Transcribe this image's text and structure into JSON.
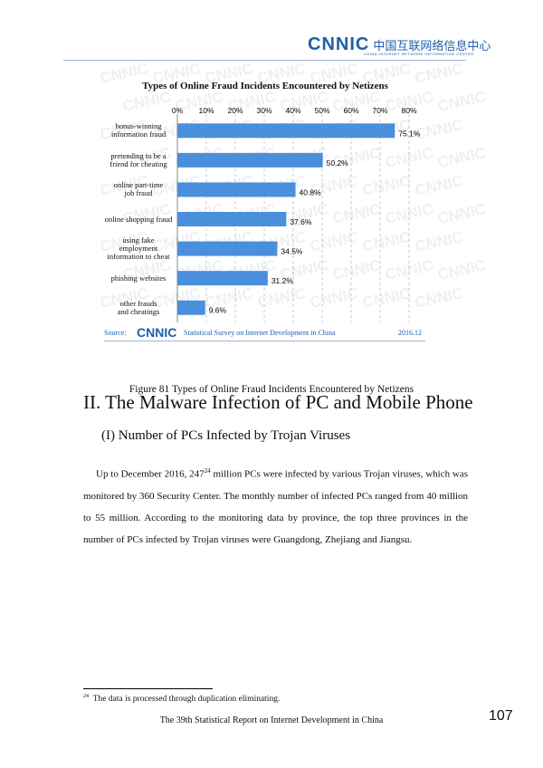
{
  "header": {
    "logo_text": "CNNIC",
    "logo_cn": "中国互联网络信息中心",
    "logo_sub": "CHINA INTERNET NETWORK INFORMATION CENTER"
  },
  "chart_data": {
    "type": "bar",
    "orientation": "horizontal",
    "title": "Types of Online Fraud Incidents Encountered by Netizens",
    "categories": [
      [
        "bonus-winning",
        "information fraud"
      ],
      [
        "pretending to be a",
        "friend for cheating"
      ],
      [
        "online part-time",
        "job fraud"
      ],
      [
        "online shopping fraud"
      ],
      [
        "using fake",
        "employment",
        "information to cheat"
      ],
      [
        "phishing websites"
      ],
      [
        "other frauds",
        "and cheatings"
      ]
    ],
    "values": [
      75.1,
      50.2,
      40.8,
      37.6,
      34.5,
      31.2,
      9.6
    ],
    "value_labels": [
      "75.1%",
      "50.2%",
      "40.8%",
      "37.6%",
      "34.5%",
      "31.2%",
      "9.6%"
    ],
    "x_ticks": [
      "0%",
      "10%",
      "20%",
      "30%",
      "40%",
      "50%",
      "60%",
      "70%",
      "80%"
    ],
    "xlim": [
      0,
      80
    ],
    "grid": true,
    "bar_color": "#4a8fdc",
    "watermark": "CNNIC",
    "source_label": "Source:",
    "source_logo": "CNNIC",
    "source_text": "Statistical Survey on Internet Development in China",
    "source_date": "2016.12"
  },
  "caption": "Figure 81 Types of Online Fraud Incidents Encountered by Netizens",
  "section_heading": "II. The Malware Infection of PC and Mobile Phone",
  "subsection_heading": "(I) Number of PCs Infected by Trojan Viruses",
  "paragraph": {
    "part1": "Up to December 2016, 247",
    "sup": "24",
    "part2": " million PCs were infected by various Trojan viruses, which was monitored by 360 Security Center. The monthly number of infected PCs ranged from 40 million to 55 million. According to the monitoring data by province, the top three provinces in the number of PCs infected by Trojan viruses were Guangdong, Zhejiang and Jiangsu."
  },
  "footnote": {
    "mark": "24",
    "text": "The data is processed through duplication eliminating."
  },
  "footer": {
    "text": "The 39th Statistical Report on Internet Development in China",
    "page_number": "107"
  }
}
